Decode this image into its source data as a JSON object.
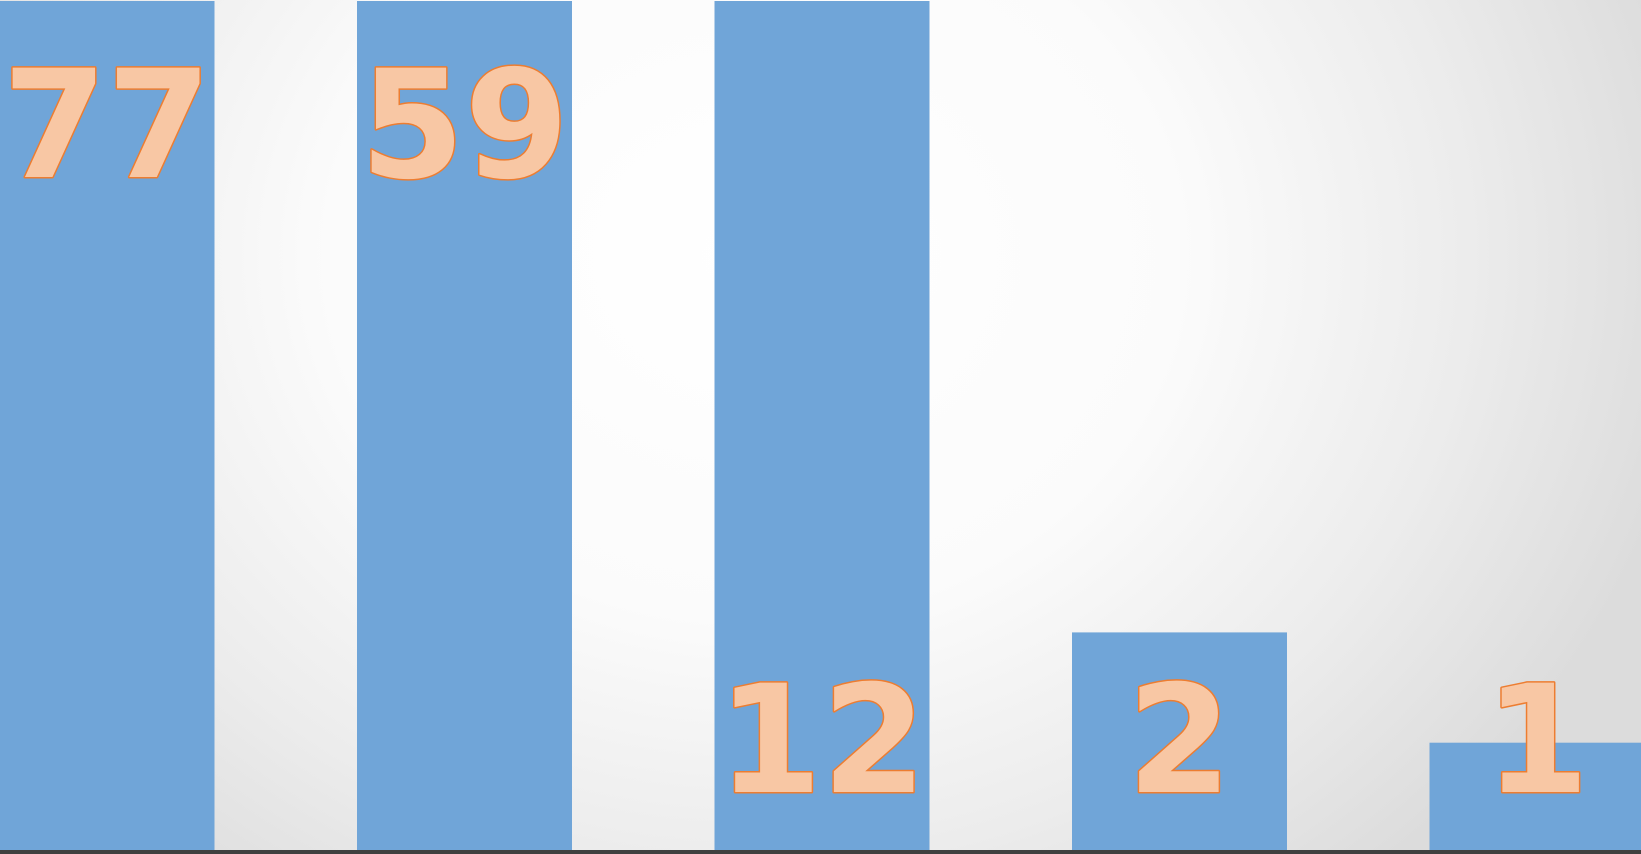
{
  "chart_data": {
    "type": "bar",
    "categories": [
      "",
      "",
      "",
      "",
      ""
    ],
    "values": [
      77,
      59,
      12,
      2,
      1
    ],
    "data_labels": [
      "77",
      "59",
      "12",
      "2",
      "1"
    ],
    "title": "",
    "xlabel": "",
    "ylabel": "",
    "ylim": [
      0,
      80
    ],
    "grid": true,
    "gridline_step": 10,
    "legend": "none",
    "colors": {
      "bar": "#70a5d8",
      "label_fill": "#f8c7a4",
      "label_stroke": "#ed7d31",
      "gridline": "#bfbfbf",
      "axis": "#404040"
    }
  }
}
